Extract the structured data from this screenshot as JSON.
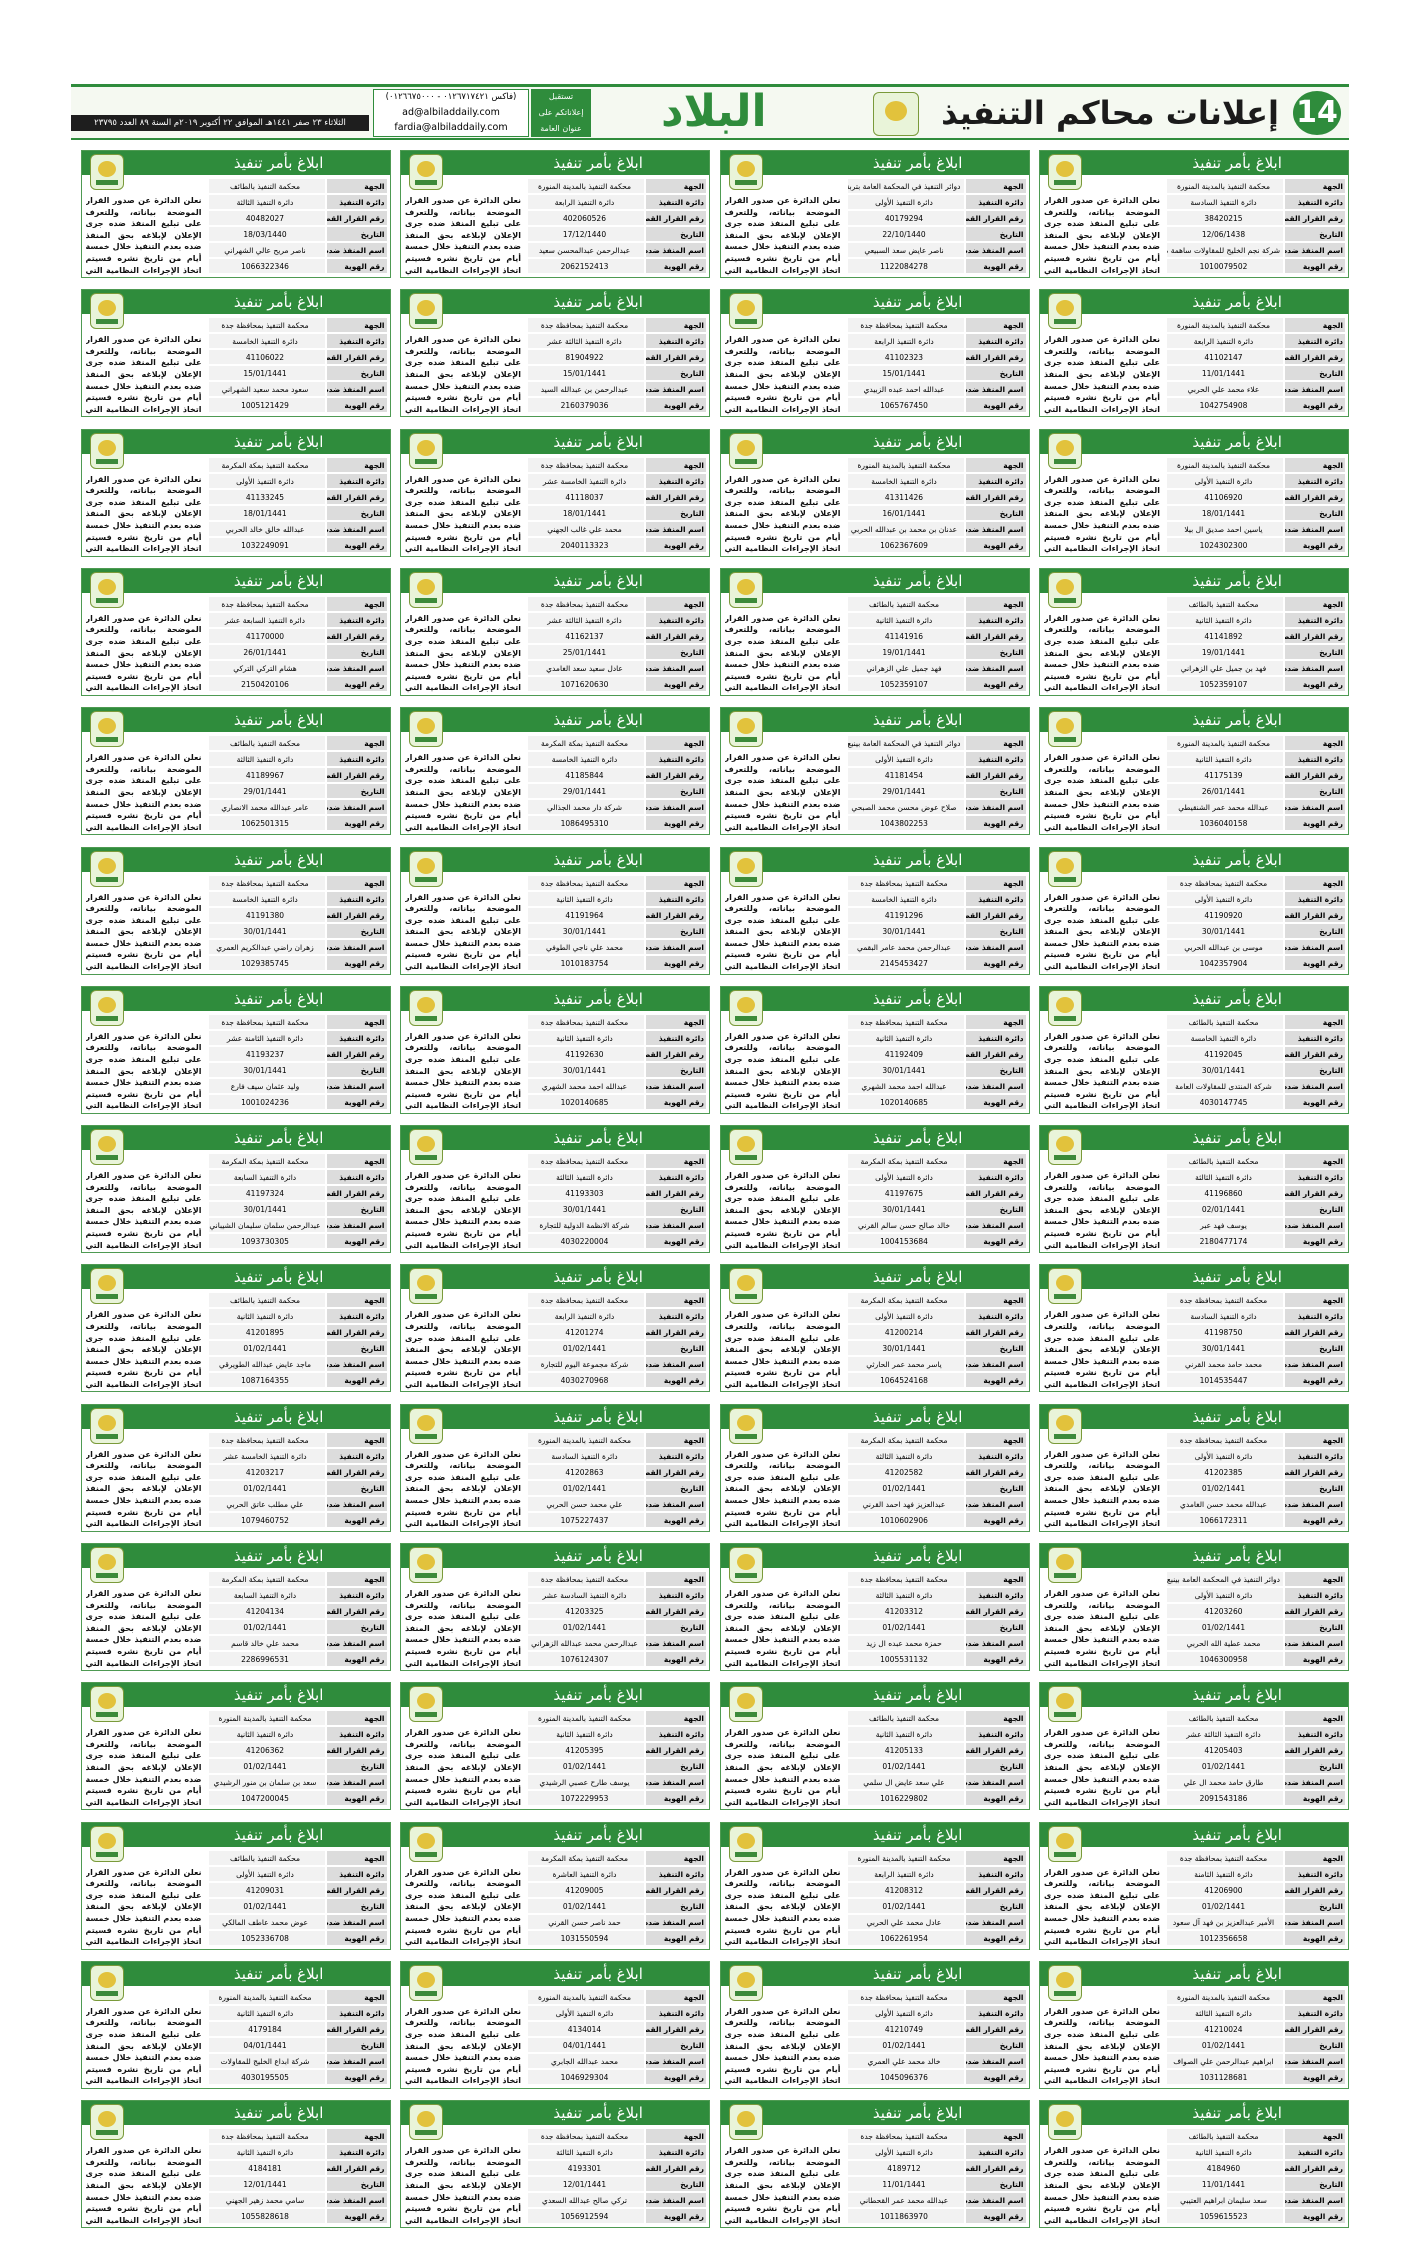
{
  "header": {
    "page_number": "14",
    "title": "إعلانات محاكم التنفيذ",
    "logo": "البلاد",
    "contact_labels": [
      "تستقبل",
      "إعلاناتكم على",
      "عنوان العامة"
    ],
    "fax": "(فاكس ٠١٢٦٧١٧٤٢١ - ٠١٢٦٦٧٥٠٠٠)",
    "email_1": "ad@albiladdaily.com",
    "email_2": "fardia@albiladdaily.com",
    "dateline": "الثلاثاء ٢٣ صفر ١٤٤١هـ الموافق ٢٢ أكتوبر ٢٠١٩م السنة ٨٩ العدد ٢٣٧٩٥"
  },
  "notice_template": {
    "title": "ابلاغ بأمر تنفيذ",
    "labels": [
      "الجهة",
      "دائرة التنفيذ",
      "رقم القرار القضائي",
      "التاريخ",
      "اسم المنفذ ضده",
      "رقم الهوية"
    ],
    "body": "نعلن الدائرة عن صدور القرار الموضحة بياناته، وللتعرف على تبليغ المنفذ ضده جرى الإعلان لإبلاغه بحق المنفذ ضده بعدم التنفيذ خلال خمسة أيام من تاريخ نشره فسيتم اتخاذ الإجراءات النظامية التي نص عليها نظام التنفيذ."
  },
  "notices": [
    [
      "محكمة التنفيذ بالمدينة المنورة",
      "دائرة التنفيذ السادسة",
      "38420215",
      "12/06/1438",
      "شركة نجم الخليج للمقاولات ساهمة مقفلة",
      "1010079502"
    ],
    [
      "دوائر التنفيذ في المحكمة العامة بتربة",
      "دائرة التنفيذ الأولى",
      "40179294",
      "22/10/1440",
      "ناصر عايض سعد السبيعي",
      "1122084278"
    ],
    [
      "محكمة التنفيذ بالمدينة المنورة",
      "دائرة التنفيذ الرابعة",
      "402060526",
      "17/12/1440",
      "عبدالرحمن عبدالمحسن سعيد",
      "2062152413"
    ],
    [
      "محكمة التنفيذ بالطائف",
      "دائرة التنفيذ الثالثة",
      "40482027",
      "18/03/1440",
      "ناصر مريح عالي الشهراني",
      "1066322346"
    ],
    [
      "محكمة التنفيذ بالمدينة المنورة",
      "دائرة التنفيذ الرابعة",
      "41102147",
      "11/01/1441",
      "علاء محمد علي الحربي",
      "1042754908"
    ],
    [
      "محكمة التنفيذ بمحافظة جدة",
      "دائرة التنفيذ الرابعة",
      "41102323",
      "15/01/1441",
      "عبدالله احمد عبده الزبيدي",
      "1065767450"
    ],
    [
      "محكمة التنفيذ بمحافظة جدة",
      "دائرة التنفيذ الثالثة عشر",
      "81904922",
      "15/01/1441",
      "عبدالرحمن بن عبدالله السيد",
      "2160379036"
    ],
    [
      "محكمة التنفيذ بمحافظة جدة",
      "دائرة التنفيذ الخامسة",
      "41106022",
      "15/01/1441",
      "سعود محمد سعيد الشهراني",
      "1005121429"
    ],
    [
      "محكمة التنفيذ بالمدينة المنورة",
      "دائرة التنفيذ الأولى",
      "41106920",
      "18/01/1441",
      "ياسين احمد صديق ال بيلا",
      "1024302300"
    ],
    [
      "محكمة التنفيذ بالمدينة المنورة",
      "دائرة التنفيذ الخامسة",
      "41311426",
      "16/01/1441",
      "عدنان بن محمد بن عبدالله الحربي",
      "1062367609"
    ],
    [
      "محكمة التنفيذ بمحافظة جدة",
      "دائرة التنفيذ الخامسة عشر",
      "41118037",
      "18/01/1441",
      "محمد علي غالب الجهني",
      "2040113323"
    ],
    [
      "محكمة التنفيذ بمكة المكرمة",
      "دائرة التنفيذ الأولى",
      "41133245",
      "18/01/1441",
      "عبدالله خالق خالد الحربي",
      "1032249091"
    ],
    [
      "محكمة التنفيذ بالطائف",
      "دائرة التنفيذ الثانية",
      "41141892",
      "19/01/1441",
      "فهد بن جميل علي الزهراني",
      "1052359107"
    ],
    [
      "محكمة التنفيذ بالطائف",
      "دائرة التنفيذ الثانية",
      "41141916",
      "19/01/1441",
      "فهد جميل علي الزهراني",
      "1052359107"
    ],
    [
      "محكمة التنفيذ بمحافظة جدة",
      "دائرة التنفيذ الثالثة عشر",
      "41162137",
      "25/01/1441",
      "عادل سعيد سعد الغامدي",
      "1071620630"
    ],
    [
      "محكمة التنفيذ بمحافظة جدة",
      "دائرة التنفيذ السابعة عشر",
      "41170000",
      "26/01/1441",
      "هشام التركي التركي",
      "2150420106"
    ],
    [
      "محكمة التنفيذ بالمدينة المنورة",
      "دائرة التنفيذ الثانية",
      "41175139",
      "26/01/1441",
      "عبدالله محمد عمر الشنقيطي",
      "1036040158"
    ],
    [
      "دوائر التنفيذ في المحكمة العامة بينبع",
      "دائرة التنفيذ الأولى",
      "41181454",
      "29/01/1441",
      "صلاح عوض محسن محمد الصبحي",
      "1043802253"
    ],
    [
      "محكمة التنفيذ بمكة المكرمة",
      "دائرة التنفيذ الخامسة",
      "41185844",
      "29/01/1441",
      "شركة دار محمد الجذالي",
      "1086495310"
    ],
    [
      "محكمة التنفيذ بالطائف",
      "دائرة التنفيذ الثالثة",
      "41189967",
      "29/01/1441",
      "عامر عبدالله محمد الانصاري",
      "1062501315"
    ],
    [
      "محكمة التنفيذ بمحافظة جدة",
      "دائرة التنفيذ الأولى",
      "41190920",
      "30/01/1441",
      "موسى بن عبدالله الحربي",
      "1042357904"
    ],
    [
      "محكمة التنفيذ بمحافظة جدة",
      "دائرة التنفيذ الخامسة",
      "41191296",
      "30/01/1441",
      "عبدالرحمن محمد عامر البقمي",
      "2145453427"
    ],
    [
      "محكمة التنفيذ بمحافظة جدة",
      "دائرة التنفيذ الثانية",
      "41191964",
      "30/01/1441",
      "محمد علي ناجي الطوفي",
      "1010183754"
    ],
    [
      "محكمة التنفيذ بمحافظة جدة",
      "دائرة التنفيذ الخامسة",
      "41191380",
      "30/01/1441",
      "زهران راضي عبدالكريم العمري",
      "1029385745"
    ],
    [
      "محكمة التنفيذ بالطائف",
      "دائرة التنفيذ الخامسة",
      "41192045",
      "30/01/1441",
      "شركة المنتدى للمقاولات العامة",
      "4030147745"
    ],
    [
      "محكمة التنفيذ بمحافظة جدة",
      "دائرة التنفيذ الثانية",
      "41192409",
      "30/01/1441",
      "عبدالله احمد محمد الشهري",
      "1020140685"
    ],
    [
      "محكمة التنفيذ بمحافظة جدة",
      "دائرة التنفيذ الثانية",
      "41192630",
      "30/01/1441",
      "عبدالله احمد محمد الشهري",
      "1020140685"
    ],
    [
      "محكمة التنفيذ بمحافظة جدة",
      "دائرة التنفيذ الثامنة عشر",
      "41193237",
      "30/01/1441",
      "وليد عثمان سيف فارع",
      "1001024236"
    ],
    [
      "محكمة التنفيذ بالطائف",
      "دائرة التنفيذ الثالثة",
      "41196860",
      "02/01/1441",
      "يوسف فهد عبر",
      "2180477174"
    ],
    [
      "محكمة التنفيذ بمكة المكرمة",
      "دائرة التنفيذ الأولى",
      "41197675",
      "30/01/1441",
      "خالد صالح حسن سالم القرني",
      "1004153684"
    ],
    [
      "محكمة التنفيذ بمحافظة جدة",
      "دائرة التنفيذ الثالثة",
      "41193303",
      "30/01/1441",
      "شركة الانظمة الدولية للتجارة",
      "4030220004"
    ],
    [
      "محكمة التنفيذ بمكة المكرمة",
      "دائرة التنفيذ السابعة",
      "41197324",
      "30/01/1441",
      "عبدالرحمن سلمان سليمان الشيباني",
      "1093730305"
    ],
    [
      "محكمة التنفيذ بمحافظة جدة",
      "دائرة التنفيذ السادسة",
      "41198750",
      "30/01/1441",
      "محمد حامد محمد القرني",
      "1014535447"
    ],
    [
      "محكمة التنفيذ بمكة المكرمة",
      "دائرة التنفيذ الأولى",
      "41200214",
      "30/01/1441",
      "ياسر محمد عمر الحارثي",
      "1064524168"
    ],
    [
      "محكمة التنفيذ بمحافظة جدة",
      "دائرة التنفيذ الرابعة",
      "41201274",
      "01/02/1441",
      "شركة مجموعة اليوم للتجارة",
      "4030270968"
    ],
    [
      "محكمة التنفيذ بالطائف",
      "دائرة التنفيذ الثانية",
      "41201895",
      "01/02/1441",
      "ماجد عايض عبدالله الطويرقي",
      "1087164355"
    ],
    [
      "محكمة التنفيذ بمحافظة جدة",
      "دائرة التنفيذ الأولى",
      "41202385",
      "01/02/1441",
      "عبدالله محمد حسن الغامدي",
      "1066172311"
    ],
    [
      "محكمة التنفيذ بمكة المكرمة",
      "دائرة التنفيذ الثالثة",
      "41202582",
      "01/02/1441",
      "عبدالعزيز فهد احمد القرني",
      "1010602906"
    ],
    [
      "محكمة التنفيذ بالمدينة المنورة",
      "دائرة التنفيذ السادسة",
      "41202863",
      "01/02/1441",
      "علي محمد حسن الحربي",
      "1075227437"
    ],
    [
      "محكمة التنفيذ بمحافظة جدة",
      "دائرة التنفيذ الخامسة عشر",
      "41203217",
      "01/02/1441",
      "علي مطلب عاتق الحربي",
      "1079460752"
    ],
    [
      "دوائر التنفيذ في المحكمة العامة بينبع",
      "دائرة التنفيذ الأولى",
      "41203260",
      "01/02/1441",
      "محمد عطية الله الحربي",
      "1046300958"
    ],
    [
      "محكمة التنفيذ بمحافظة جدة",
      "دائرة التنفيذ الثالثة",
      "41203312",
      "01/02/1441",
      "حمزة محمد عبده ال زيد",
      "1005531132"
    ],
    [
      "محكمة التنفيذ بمحافظة جدة",
      "دائرة التنفيذ السادسة عشر",
      "41203325",
      "01/02/1441",
      "عبدالرحمن محمد عبدالله الزهراني",
      "1076124307"
    ],
    [
      "محكمة التنفيذ بمكة المكرمة",
      "دائرة التنفيذ السابعة",
      "41204134",
      "01/02/1441",
      "محمد علي خالد قاسم",
      "2286996531"
    ],
    [
      "محكمة التنفيذ بالطائف",
      "دائرة التنفيذ الثالثة عشر",
      "41205403",
      "01/02/1441",
      "طارق حامد محمد ال علي",
      "2091543186"
    ],
    [
      "محكمة التنفيذ بالطائف",
      "دائرة التنفيذ الثانية",
      "41205133",
      "01/02/1441",
      "علي سعد عايض ال سلمي",
      "1016229802"
    ],
    [
      "محكمة التنفيذ بالمدينة المنورة",
      "دائرة التنفيذ الثانية",
      "41205395",
      "01/02/1441",
      "يوسف طارح عصبي الرشيدي",
      "1072229953"
    ],
    [
      "محكمة التنفيذ بالمدينة المنورة",
      "دائرة التنفيذ الثانية",
      "41206362",
      "01/02/1441",
      "سعد بن سلمان بن منور الرشيدي",
      "1047200045"
    ],
    [
      "محكمة التنفيذ بمحافظة جدة",
      "دائرة التنفيذ الثامنة",
      "41206900",
      "01/02/1441",
      "الأمير عبدالعزيز بن فهد آل سعود",
      "1012356658"
    ],
    [
      "محكمة التنفيذ بالمدينة المنورة",
      "دائرة التنفيذ الرابعة",
      "41208312",
      "01/02/1441",
      "عادل محمد علي الحربي",
      "1062261954"
    ],
    [
      "محكمة التنفيذ بمكة المكرمة",
      "دائرة التنفيذ العاشرة",
      "41209005",
      "01/02/1441",
      "حمد ناصر حسن القرني",
      "1031550594"
    ],
    [
      "محكمة التنفيذ بالطائف",
      "دائرة التنفيذ الأولى",
      "41209031",
      "01/02/1441",
      "عوض محمد عاطف المالكي",
      "1052336708"
    ],
    [
      "محكمة التنفيذ بالمدينة المنورة",
      "دائرة التنفيذ الثالثة",
      "41210024",
      "01/02/1441",
      "ابراهيم عبدالرحمن علي الصواف",
      "1031128681"
    ],
    [
      "محكمة التنفيذ بمحافظة جدة",
      "دائرة التنفيذ الأولى",
      "41210749",
      "01/02/1441",
      "خالد محمد علي العمري",
      "1045096376"
    ],
    [
      "محكمة التنفيذ بالمدينة المنورة",
      "دائرة التنفيذ الأولى",
      "4134014",
      "04/01/1441",
      "محمد عبدالله الجابري",
      "1046929304"
    ],
    [
      "محكمة التنفيذ بالمدينة المنورة",
      "دائرة التنفيذ الثانية",
      "4179184",
      "04/01/1441",
      "شركة ابداع الخليج للمقاولات",
      "4030195505"
    ],
    [
      "محكمة التنفيذ بالطائف",
      "دائرة التنفيذ الثانية",
      "4184960",
      "11/01/1441",
      "سعد سليمان ابراهيم العتيبي",
      "1059615523"
    ],
    [
      "محكمة التنفيذ بمحافظة جدة",
      "دائرة التنفيذ الأولى",
      "4189712",
      "11/01/1441",
      "عبدالله محمد عمر القحطاني",
      "1011863970"
    ],
    [
      "محكمة التنفيذ بمحافظة جدة",
      "دائرة التنفيذ الثالثة",
      "4193301",
      "12/01/1441",
      "تركي صالح عبدالله السعدي",
      "1056912594"
    ],
    [
      "محكمة التنفيذ بمحافظة جدة",
      "دائرة التنفيذ الثانية",
      "4184181",
      "12/01/1441",
      "سامي محمد زهير الجهني",
      "1055828618"
    ]
  ]
}
